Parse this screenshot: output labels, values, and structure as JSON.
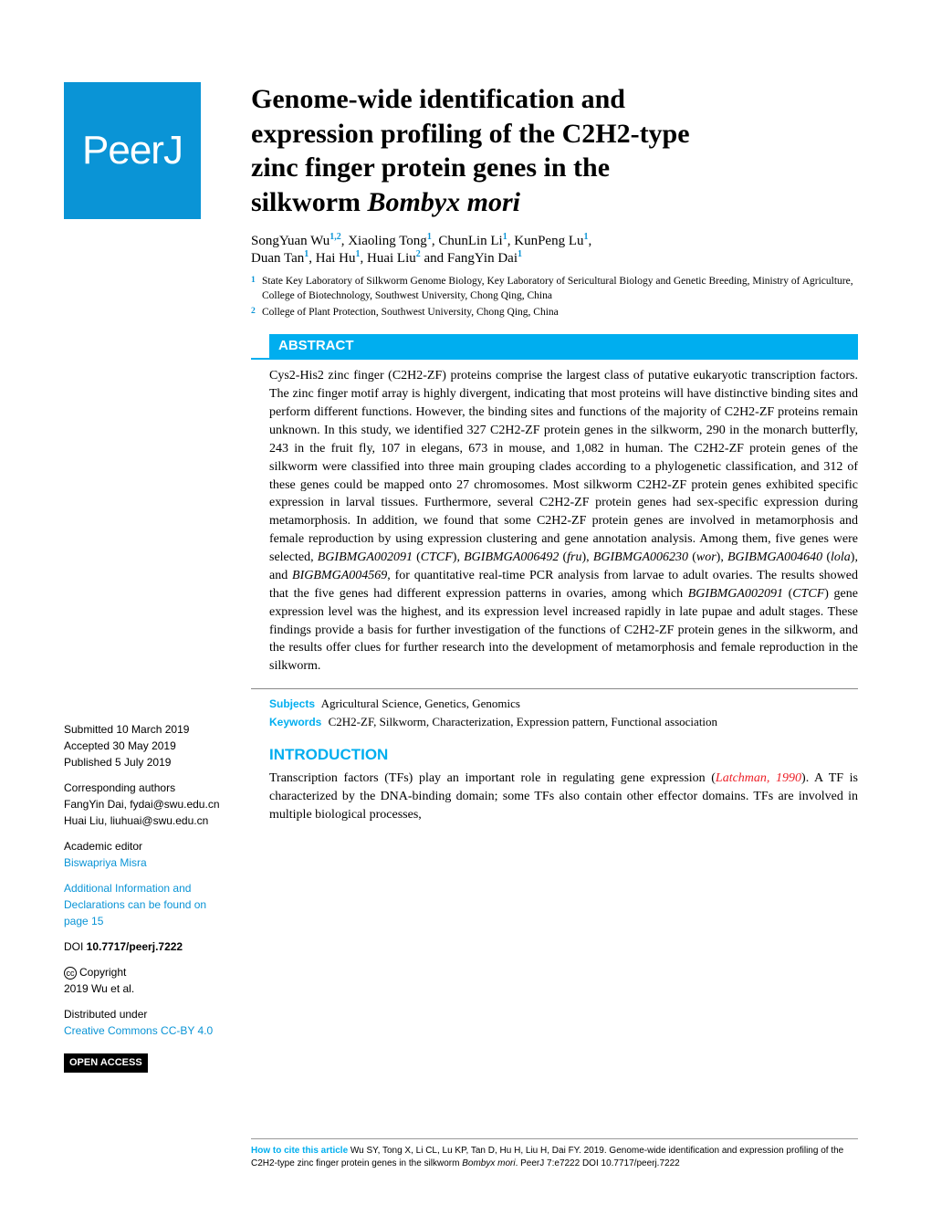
{
  "logo_text": "PeerJ",
  "title_line1": "Genome-wide identification and",
  "title_line2": "expression profiling of the C2H2-type",
  "title_line3": "zinc finger protein genes in the",
  "title_line4": "silkworm ",
  "title_species": "Bombyx mori",
  "authors_html_parts": {
    "a1": "SongYuan Wu",
    "a1_sup": "1,2",
    "a2": ", Xiaoling Tong",
    "a2_sup": "1",
    "a3": ", ChunLin Li",
    "a3_sup": "1",
    "a4": ", KunPeng Lu",
    "a4_sup": "1",
    "a5": ",",
    "a6": "Duan Tan",
    "a6_sup": "1",
    "a7": ", Hai Hu",
    "a7_sup": "1",
    "a8": ", Huai Liu",
    "a8_sup": "2",
    "a9": " and FangYin Dai",
    "a9_sup": "1"
  },
  "affiliations": {
    "aff1_sup": "1",
    "aff1": "State Key Laboratory of Silkworm Genome Biology, Key Laboratory of Sericultural Biology and Genetic Breeding, Ministry of Agriculture, College of Biotechnology, Southwest University, Chong Qing, China",
    "aff2_sup": "2",
    "aff2": "College of Plant Protection, Southwest University, Chong Qing, China"
  },
  "abstract_header": "ABSTRACT",
  "abstract_body": "Cys2-His2 zinc finger (C2H2-ZF) proteins comprise the largest class of putative eukaryotic transcription factors. The zinc finger motif array is highly divergent, indicating that most proteins will have distinctive binding sites and perform different functions. However, the binding sites and functions of the majority of C2H2-ZF proteins remain unknown. In this study, we identified 327 C2H2-ZF protein genes in the silkworm, 290 in the monarch butterfly, 243 in the fruit fly, 107 in elegans, 673 in mouse, and 1,082 in human. The C2H2-ZF protein genes of the silkworm were classified into three main grouping clades according to a phylogenetic classification, and 312 of these genes could be mapped onto 27 chromosomes. Most silkworm C2H2-ZF protein genes exhibited specific expression in larval tissues. Furthermore, several C2H2-ZF protein genes had sex-specific expression during metamorphosis. In addition, we found that some C2H2-ZF protein genes are involved in metamorphosis and female reproduction by using expression clustering and gene annotation analysis. Among them, five genes were selected, ",
  "gene1": "BGIBMGA002091",
  "gene1_paren": " (",
  "gene1_name": "CTCF",
  "gene1_close": "), ",
  "gene2": "BGIBMGA006492",
  "gene2_paren": " (",
  "gene2_name": "fru",
  "gene2_close": "), ",
  "gene3": "BGIBMGA006230",
  "gene3_paren": " (",
  "gene3_name": "wor",
  "gene3_close": "), ",
  "gene4": "BGIBMGA004640",
  "gene4_paren": " (",
  "gene4_name": "lola",
  "gene4_close": "), and ",
  "gene5": "BIGBMGA004569",
  "abstract_body2": ", for quantitative real-time PCR analysis from larvae to adult ovaries. The results showed that the five genes had different expression patterns in ovaries, among which ",
  "gene6": "BGIBMGA002091",
  "gene6_paren": " (",
  "gene6_name": "CTCF",
  "gene6_close": ") gene expression level was the highest, and its expression level increased rapidly in late pupae and adult stages. These findings provide a basis for further investigation of the functions of C2H2-ZF protein genes in the silkworm, and the results offer clues for further research into the development of metamorphosis and female reproduction in the silkworm.",
  "subjects_label": "Subjects",
  "subjects_value": "Agricultural Science, Genetics, Genomics",
  "keywords_label": "Keywords",
  "keywords_value": "C2H2-ZF, Silkworm, Characterization, Expression pattern, Functional association",
  "intro_header": "INTRODUCTION",
  "intro_body1": "Transcription factors (TFs) play an important role in regulating gene expression (",
  "intro_cite": "Latchman, 1990",
  "intro_body2": "). A TF is characterized by the DNA-binding domain; some TFs also contain other effector domains. TFs are involved in multiple biological processes,",
  "sidebar": {
    "submitted_label": "Submitted",
    "submitted_value": " 10 March 2019",
    "accepted_label": "Accepted",
    "accepted_value": " 30 May 2019",
    "published_label": "Published",
    "published_value": " 5 July 2019",
    "corr_label": "Corresponding authors",
    "corr1": "FangYin Dai, fydai@swu.edu.cn",
    "corr2": "Huai Liu, liuhuai@swu.edu.cn",
    "editor_label": "Academic editor",
    "editor_name": "Biswapriya Misra",
    "addinfo": "Additional Information and Declarations can be found on page 15",
    "doi_label": "DOI ",
    "doi_value": "10.7717/peerj.7222",
    "copyright_label": "Copyright",
    "copyright_value": "2019 Wu et al.",
    "distrib_label": "Distributed under",
    "distrib_value": "Creative Commons CC-BY 4.0",
    "open_access": "OPEN ACCESS"
  },
  "footer": {
    "cite_label": "How to cite this article",
    "cite_text": " Wu SY, Tong X, Li CL, Lu KP, Tan D, Hu H, Liu H, Dai FY. 2019. Genome-wide identification and expression profiling of the C2H2-type zinc finger protein genes in the silkworm ",
    "cite_species": "Bombyx mori",
    "cite_journal": ". PeerJ 7:e7222 DOI 10.7717/peerj.7222"
  },
  "colors": {
    "brand_blue": "#0a94d6",
    "accent_cyan": "#00aeef",
    "citation_red": "#ed1c24"
  }
}
